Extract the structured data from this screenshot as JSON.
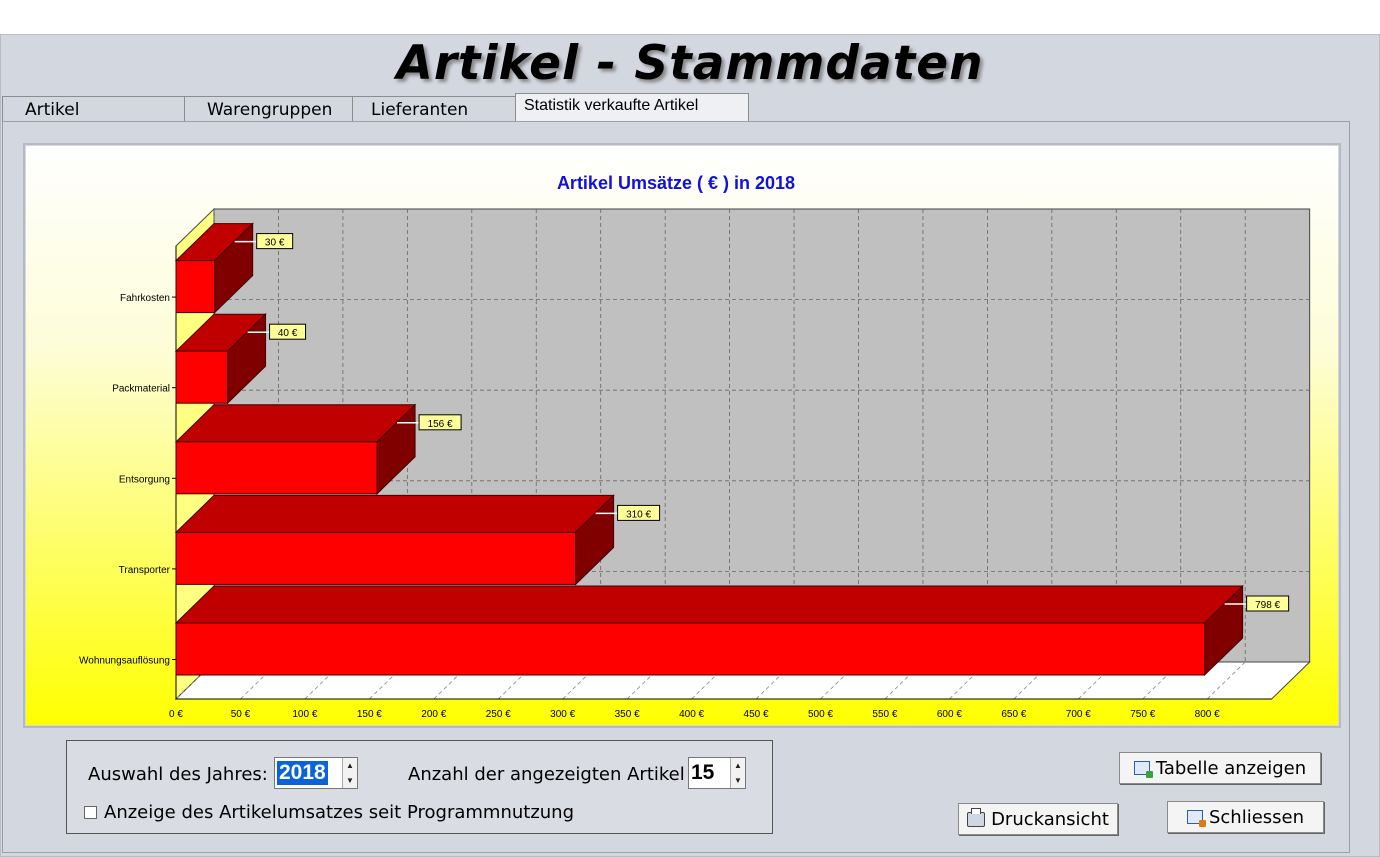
{
  "app": {
    "title": "Artikel - Stammdaten"
  },
  "tabs": [
    {
      "label": "Artikel"
    },
    {
      "label": "Warengruppen"
    },
    {
      "label": "Lieferanten"
    },
    {
      "label": "Statistik verkaufte Artikel"
    }
  ],
  "active_tab": "Statistik verkaufte Artikel",
  "chart_data": {
    "type": "bar",
    "orientation": "horizontal",
    "title": "Artikel Umsätze ( € ) in 2018",
    "categories": [
      "Fahrkosten",
      "Packmaterial",
      "Entsorgung",
      "Transporter",
      "Wohnungsauflösung"
    ],
    "values": [
      30,
      40,
      156,
      310,
      798
    ],
    "data_labels": [
      "30 €",
      "40 €",
      "156 €",
      "310 €",
      "798 €"
    ],
    "xlim": [
      0,
      850
    ],
    "x_ticks": [
      "0 €",
      "50 €",
      "100 €",
      "150 €",
      "200 €",
      "250 €",
      "300 €",
      "350 €",
      "400 €",
      "450 €",
      "500 €",
      "550 €",
      "600 €",
      "650 €",
      "700 €",
      "750 €",
      "800 €"
    ],
    "grid": true,
    "style": "3d",
    "colors": {
      "bar_front": "#ff0000",
      "bar_top": "#c00000",
      "bar_side": "#800000",
      "plot_wall": "#c0c0c0",
      "title": "#1010e0",
      "label_box": "#ffff99"
    }
  },
  "options": {
    "year_label": "Auswahl des Jahres:",
    "year_value": "2018",
    "count_label": "Anzahl der angezeigten Artikel",
    "count_value": "15",
    "since_usage_label": "Anzeige des Artikelumsatzes seit Programmnutzung",
    "since_usage_checked": false
  },
  "buttons": {
    "show_table": "Tabelle anzeigen",
    "print_preview": "Druckansicht",
    "close": "Schliessen"
  },
  "icons": {
    "show_table": "table-icon",
    "print_preview": "printer-icon",
    "close": "close-window-icon"
  }
}
